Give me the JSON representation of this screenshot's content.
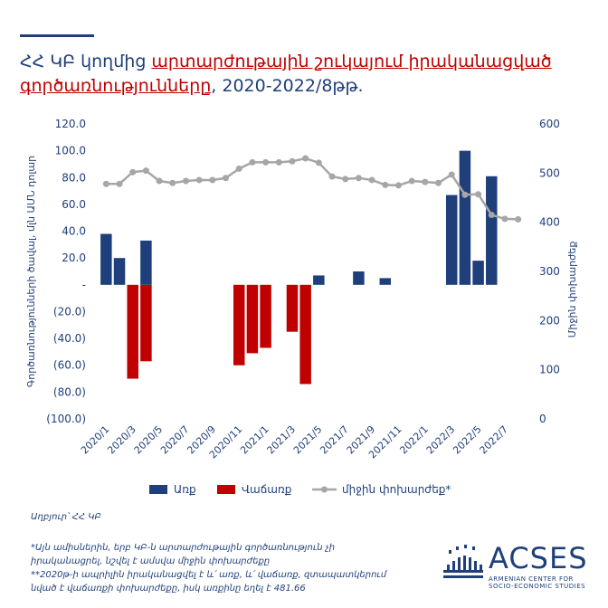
{
  "title": {
    "part1": "ՀՀ ԿԲ կողմից ",
    "part2": "արտարժութային շուկայում իրականացված",
    "part3": "գործառնությունները",
    "part4": ", 2020-2022/8թթ."
  },
  "legend": {
    "buy": "Առք",
    "sell": "Վաճառք",
    "rate": "միջին փոխարժեք*"
  },
  "source": "Աղբյուր՝ ՀՀ ԿԲ",
  "notes": [
    "*Այն ամիսներին, երբ ԿԲ-ն արտարժութային գործառնություն չի",
    "իրականացրել, նշվել է ամսվա միջին փոխարժեքը",
    "**2020թ-ի ապրիլին իրականացվել է և՛ առք, և՛ վաճառք, զտապատկերում",
    "նված է վաճառքի փոխարժեքը, իսկ առքինը եղել է 481.66"
  ],
  "logo": {
    "name": "ACSES",
    "line1": "ARMENIAN CENTER FOR",
    "line2": "SOCIO-ECONOMIC STUDIES"
  },
  "colors": {
    "buy": "#1f3f7a",
    "sell": "#c00000",
    "rate": "#a6a6a6",
    "text": "#1f3f7a"
  },
  "chart_data": {
    "type": "bar",
    "categories": [
      "2020/1",
      "2020/2",
      "2020/3",
      "2020/4",
      "2020/5",
      "2020/6",
      "2020/7",
      "2020/8",
      "2020/9",
      "2020/10",
      "2020/11",
      "2020/12",
      "2021/1",
      "2021/2",
      "2021/3",
      "2021/4",
      "2021/5",
      "2021/6",
      "2021/7",
      "2021/8",
      "2021/9",
      "2021/10",
      "2021/11",
      "2021/12",
      "2022/1",
      "2022/2",
      "2022/3",
      "2022/4",
      "2022/5",
      "2022/6",
      "2022/7",
      "2022/8"
    ],
    "x_tick_labels": [
      "2020/1",
      "2020/3",
      "2020/5",
      "2020/7",
      "2020/9",
      "2020/11",
      "2021/1",
      "2021/3",
      "2021/5",
      "2021/7",
      "2021/9",
      "2021/11",
      "2022/1",
      "2022/3",
      "2022/5",
      "2022/7"
    ],
    "series": [
      {
        "name": "Առք",
        "axis": "left",
        "values": [
          38,
          20,
          0,
          33,
          0,
          0,
          0,
          0,
          0,
          0,
          0,
          0,
          0,
          0,
          0,
          0,
          7,
          0,
          0,
          10,
          0,
          5,
          0,
          0,
          0,
          0,
          67,
          100,
          18,
          81,
          0,
          0
        ]
      },
      {
        "name": "Վաճառք",
        "axis": "left",
        "values": [
          0,
          0,
          -70,
          -57,
          0,
          0,
          0,
          0,
          0,
          0,
          -60,
          -51,
          -47,
          0,
          -35,
          -74,
          0,
          0,
          0,
          0,
          0,
          0,
          0,
          0,
          0,
          0,
          0,
          0,
          0,
          0,
          0,
          0
        ]
      },
      {
        "name": "միջին փոխարժեք*",
        "axis": "right",
        "type": "line",
        "values": [
          478,
          478,
          502,
          505,
          484,
          480,
          484,
          486,
          486,
          490,
          509,
          522,
          522,
          522,
          524,
          530,
          521,
          493,
          488,
          490,
          486,
          476,
          475,
          484,
          482,
          480,
          497,
          456,
          457,
          415,
          407,
          406
        ]
      }
    ],
    "ylabel_left": "Գործառնությունների ծավալ, մլն ԱՄՆ դոլար",
    "ylabel_right": "Միջին փոխարժեք",
    "ylim_left": [
      -100,
      120
    ],
    "ylim_right": [
      0,
      600
    ],
    "left_tick_labels": [
      "120.0",
      "100.0",
      "80.0",
      "60.0",
      "40.0",
      "20.0",
      "-",
      "(20.0)",
      "(40.0)",
      "(60.0)",
      "(80.0)",
      "(100.0)"
    ],
    "right_tick_labels": [
      "600",
      "500",
      "400",
      "300",
      "200",
      "100",
      "0"
    ],
    "legend_position": "bottom"
  }
}
